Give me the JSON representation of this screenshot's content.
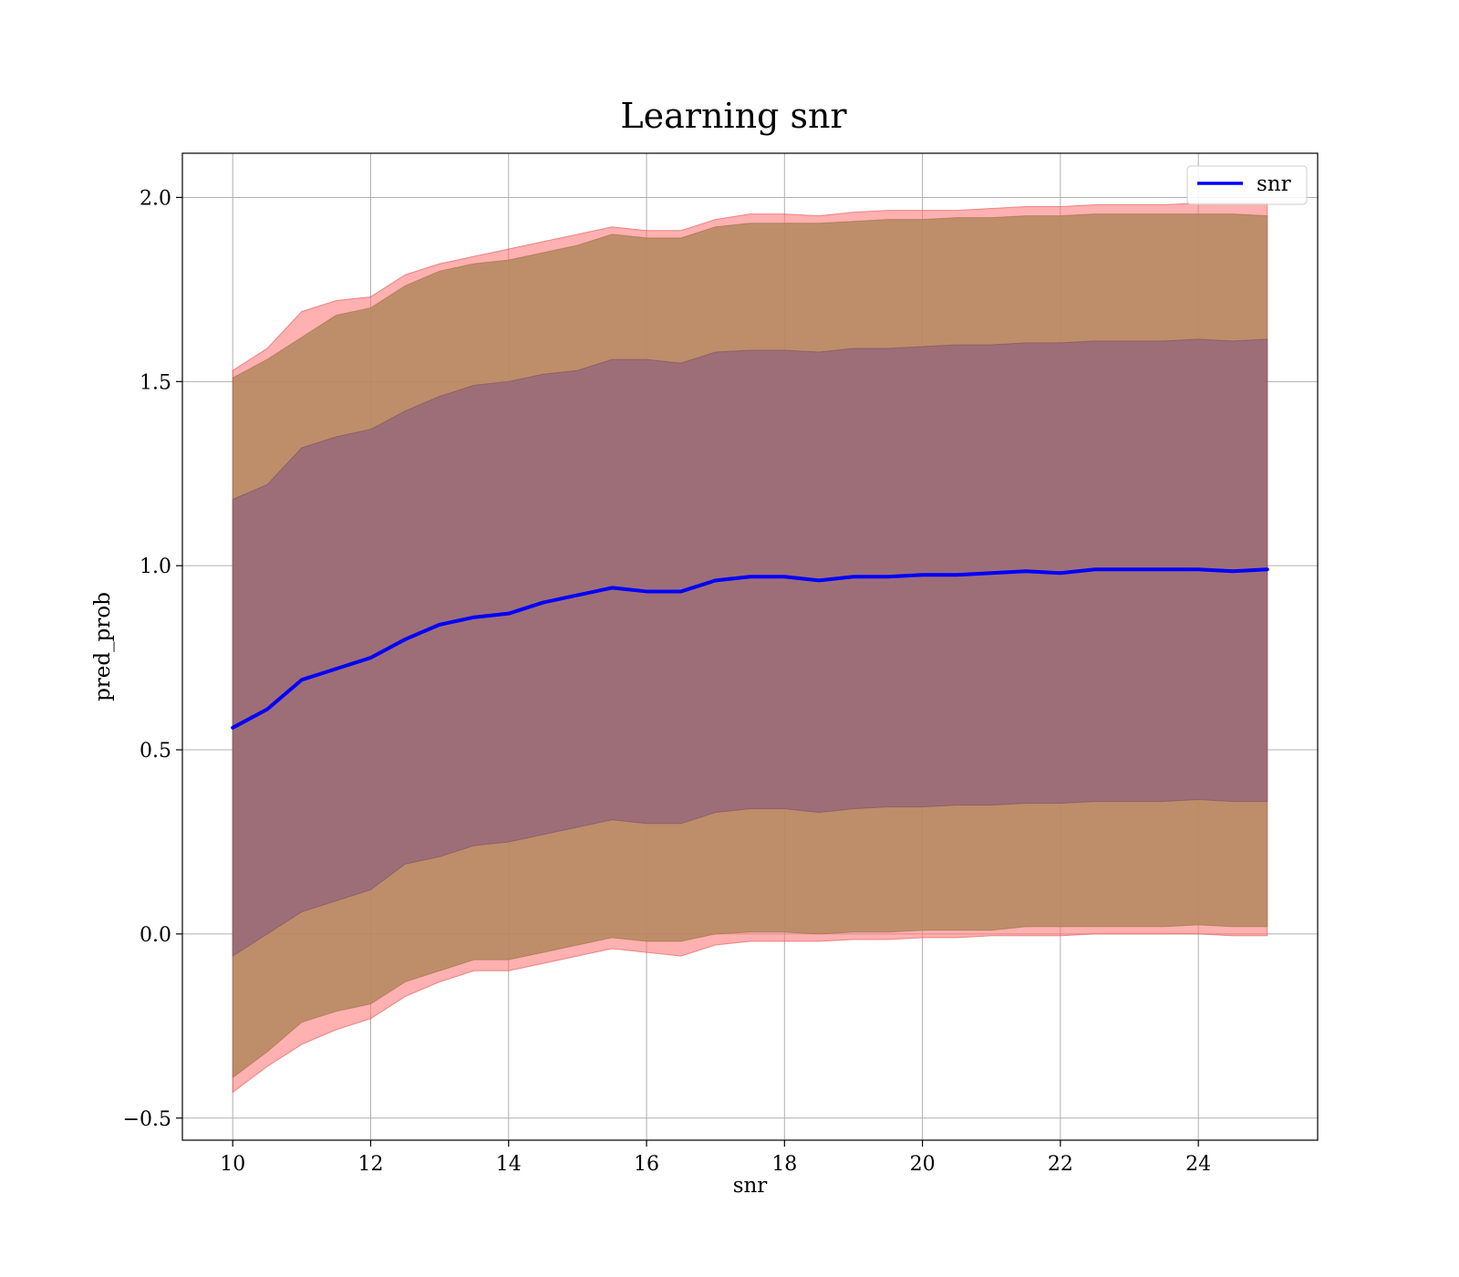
{
  "chart_data": {
    "type": "area",
    "title": "Learning snr",
    "xlabel": "snr",
    "ylabel": "pred_prob",
    "xlim": [
      9.27,
      25.73
    ],
    "ylim": [
      -0.56,
      2.12
    ],
    "xticks": [
      10,
      12,
      14,
      16,
      18,
      20,
      22,
      24
    ],
    "xtick_labels": [
      "10",
      "12",
      "14",
      "16",
      "18",
      "20",
      "22",
      "24"
    ],
    "yticks": [
      -0.5,
      0.0,
      0.5,
      1.0,
      1.5,
      2.0
    ],
    "ytick_labels": [
      "−0.5",
      "0.0",
      "0.5",
      "1.0",
      "1.5",
      "2.0"
    ],
    "grid": true,
    "legend": {
      "position": "top-right",
      "entries": [
        "snr"
      ]
    },
    "colors": {
      "line": "#0000ff",
      "outer_band": "#ff6f6f",
      "middle_band": "#b3885f",
      "inner_band": "#9e6e78",
      "grid": "#b0b0b0"
    },
    "x": [
      10.0,
      10.5,
      11.0,
      11.5,
      12.0,
      12.5,
      13.0,
      13.5,
      14.0,
      14.5,
      15.0,
      15.5,
      16.0,
      16.5,
      17.0,
      17.5,
      18.0,
      18.5,
      19.0,
      19.5,
      20.0,
      20.5,
      21.0,
      21.5,
      22.0,
      22.5,
      23.0,
      23.5,
      24.0,
      24.5,
      25.0
    ],
    "series": [
      {
        "name": "snr",
        "kind": "line",
        "values": [
          0.56,
          0.61,
          0.69,
          0.72,
          0.75,
          0.8,
          0.84,
          0.86,
          0.87,
          0.9,
          0.92,
          0.94,
          0.93,
          0.93,
          0.96,
          0.97,
          0.97,
          0.96,
          0.97,
          0.97,
          0.975,
          0.975,
          0.98,
          0.985,
          0.98,
          0.99,
          0.99,
          0.99,
          0.99,
          0.985,
          0.99
        ]
      },
      {
        "kind": "band",
        "role": "outer",
        "lower": [
          -0.43,
          -0.36,
          -0.3,
          -0.26,
          -0.23,
          -0.17,
          -0.13,
          -0.1,
          -0.1,
          -0.08,
          -0.06,
          -0.04,
          -0.05,
          -0.06,
          -0.03,
          -0.02,
          -0.02,
          -0.02,
          -0.015,
          -0.015,
          -0.01,
          -0.01,
          -0.005,
          -0.005,
          -0.005,
          0.0,
          0.0,
          0.0,
          0.0,
          -0.005,
          -0.005
        ],
        "upper": [
          1.53,
          1.59,
          1.69,
          1.72,
          1.73,
          1.79,
          1.82,
          1.84,
          1.86,
          1.88,
          1.9,
          1.92,
          1.91,
          1.91,
          1.94,
          1.955,
          1.955,
          1.95,
          1.96,
          1.965,
          1.965,
          1.965,
          1.97,
          1.975,
          1.975,
          1.98,
          1.98,
          1.98,
          1.985,
          1.985,
          1.985
        ]
      },
      {
        "kind": "band",
        "role": "middle",
        "lower": [
          -0.39,
          -0.32,
          -0.24,
          -0.21,
          -0.19,
          -0.13,
          -0.1,
          -0.07,
          -0.07,
          -0.05,
          -0.03,
          -0.01,
          -0.02,
          -0.02,
          0.0,
          0.005,
          0.005,
          0.0,
          0.005,
          0.005,
          0.01,
          0.01,
          0.01,
          0.02,
          0.02,
          0.02,
          0.02,
          0.02,
          0.025,
          0.02,
          0.02
        ],
        "upper": [
          1.51,
          1.56,
          1.62,
          1.68,
          1.7,
          1.76,
          1.8,
          1.82,
          1.83,
          1.85,
          1.87,
          1.9,
          1.89,
          1.89,
          1.92,
          1.93,
          1.93,
          1.93,
          1.935,
          1.94,
          1.94,
          1.945,
          1.945,
          1.95,
          1.95,
          1.955,
          1.955,
          1.955,
          1.955,
          1.955,
          1.95
        ]
      },
      {
        "kind": "band",
        "role": "inner",
        "lower": [
          -0.06,
          0.0,
          0.06,
          0.09,
          0.12,
          0.19,
          0.21,
          0.24,
          0.25,
          0.27,
          0.29,
          0.31,
          0.3,
          0.3,
          0.33,
          0.34,
          0.34,
          0.33,
          0.34,
          0.345,
          0.345,
          0.35,
          0.35,
          0.355,
          0.355,
          0.36,
          0.36,
          0.36,
          0.365,
          0.36,
          0.36
        ],
        "upper": [
          1.18,
          1.22,
          1.32,
          1.35,
          1.37,
          1.42,
          1.46,
          1.49,
          1.5,
          1.52,
          1.53,
          1.56,
          1.56,
          1.55,
          1.58,
          1.585,
          1.585,
          1.58,
          1.59,
          1.59,
          1.595,
          1.6,
          1.6,
          1.605,
          1.605,
          1.61,
          1.61,
          1.61,
          1.615,
          1.61,
          1.615
        ]
      }
    ]
  }
}
